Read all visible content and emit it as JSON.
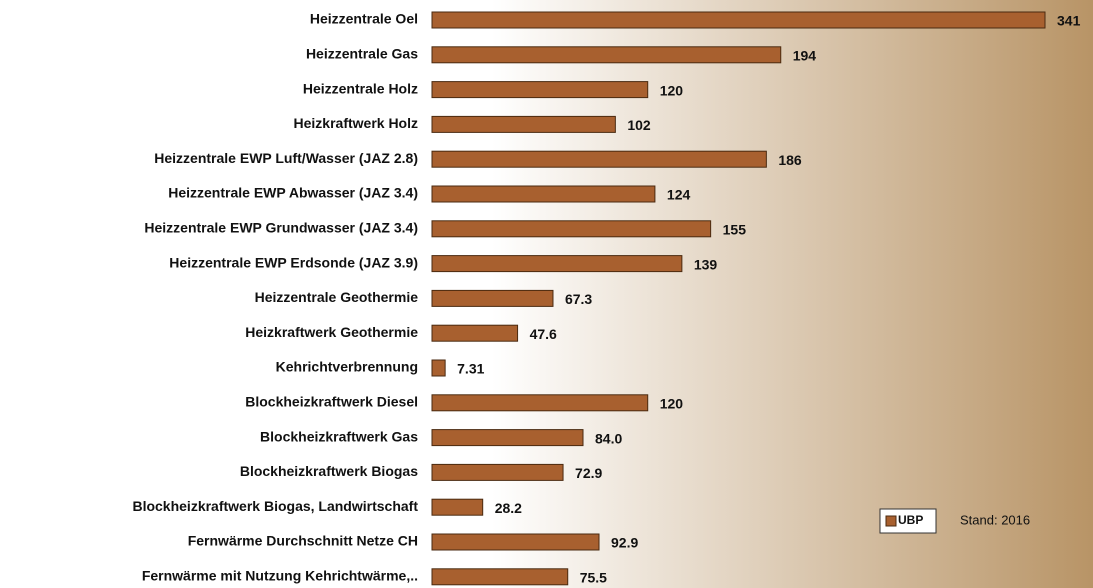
{
  "chart_data": {
    "type": "bar",
    "orientation": "horizontal",
    "categories": [
      "Heizzentrale Oel",
      "Heizzentrale Gas",
      "Heizzentrale Holz",
      "Heizkraftwerk Holz",
      "Heizzentrale EWP Luft/Wasser (JAZ 2.8)",
      "Heizzentrale EWP Abwasser (JAZ 3.4)",
      "Heizzentrale EWP Grundwasser (JAZ 3.4)",
      "Heizzentrale EWP Erdsonde (JAZ 3.9)",
      "Heizzentrale Geothermie",
      "Heizkraftwerk Geothermie",
      "Kehrichtverbrennung",
      "Blockheizkraftwerk Diesel",
      "Blockheizkraftwerk Gas",
      "Blockheizkraftwerk Biogas",
      "Blockheizkraftwerk Biogas, Landwirtschaft",
      "Fernwärme Durchschnitt Netze CH",
      "Fernwärme mit Nutzung Kehrichtwärme,.."
    ],
    "series": [
      {
        "name": "UBP",
        "color": "#a8602f",
        "values": [
          341,
          194,
          120,
          102,
          186,
          124,
          155,
          139,
          67.3,
          47.6,
          7.31,
          120,
          84.0,
          72.9,
          28.2,
          92.9,
          75.5
        ],
        "value_labels": [
          "341",
          "194",
          "120",
          "102",
          "186",
          "124",
          "155",
          "139",
          "67.3",
          "47.6",
          "7.31",
          "120",
          "84.0",
          "72.9",
          "28.2",
          "92.9",
          "75.5"
        ]
      }
    ],
    "xlim": [
      0,
      341
    ],
    "annotation": "Stand: 2016"
  }
}
